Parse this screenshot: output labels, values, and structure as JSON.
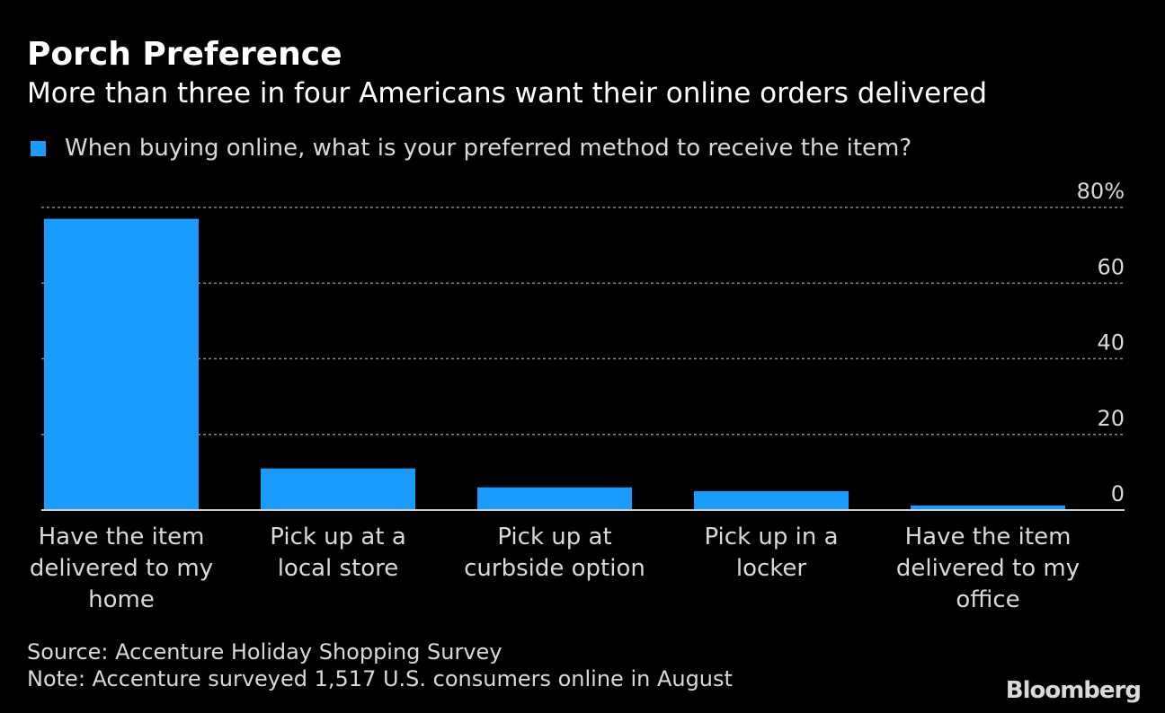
{
  "title": "Porch Preference",
  "subtitle": "More than three in four Americans want their online orders delivered",
  "footer": {
    "source": "Source: Accenture Holiday Shopping Survey",
    "note": "Note: Accenture surveyed 1,517 U.S. consumers online in August",
    "brand": "Bloomberg"
  },
  "chart_data": {
    "type": "bar",
    "title": "Porch Preference",
    "subtitle": "More than three in four Americans want their online orders delivered",
    "categories": [
      [
        "Have the item",
        "delivered to my",
        "home"
      ],
      [
        "Pick up at a",
        "local store"
      ],
      [
        "Pick up at",
        "curbside option"
      ],
      [
        "Pick up in a",
        "locker"
      ],
      [
        "Have the item",
        "delivered to my",
        "office"
      ]
    ],
    "series": [
      {
        "name": "When buying online, what is your preferred method to receive the item?",
        "color": "#1a9cff",
        "values": [
          77,
          11,
          6,
          5,
          1.2
        ]
      }
    ],
    "ylim": [
      0,
      80
    ],
    "yticks": [
      0,
      20,
      40,
      60,
      80
    ],
    "ytick_labels": [
      "0",
      "20",
      "40",
      "60",
      "80%"
    ],
    "y_axis_position": "right",
    "grid": true,
    "legend_position": "top-left"
  }
}
